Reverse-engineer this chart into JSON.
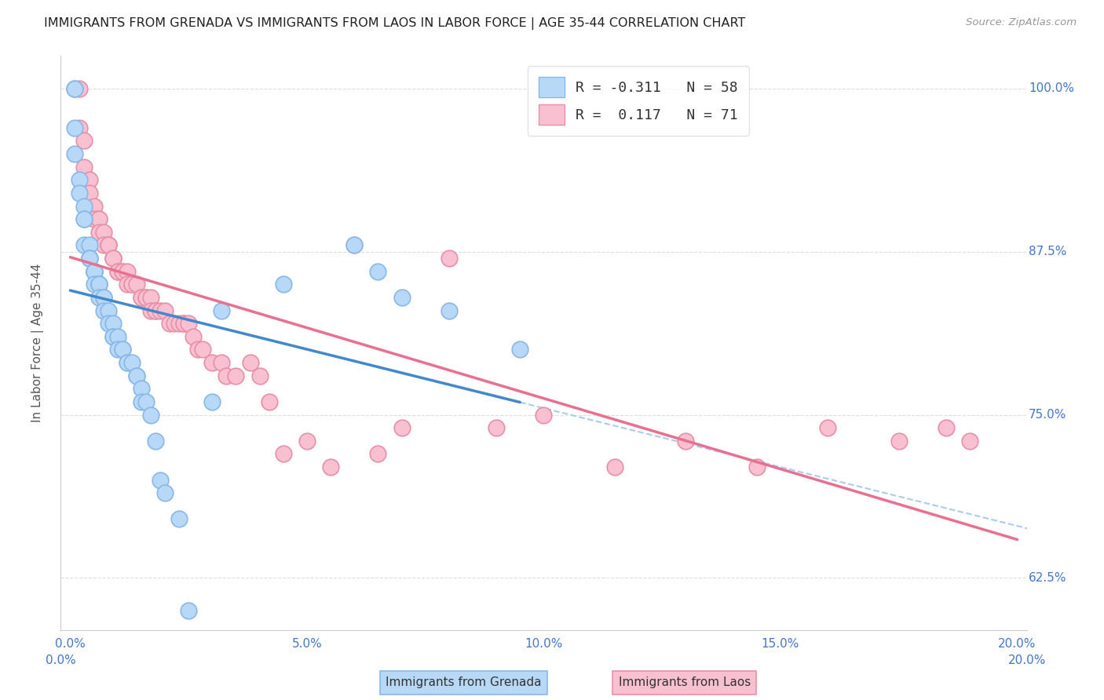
{
  "title": "IMMIGRANTS FROM GRENADA VS IMMIGRANTS FROM LAOS IN LABOR FORCE | AGE 35-44 CORRELATION CHART",
  "source": "Source: ZipAtlas.com",
  "ylabel": "In Labor Force | Age 35-44",
  "ytick_labels": [
    "62.5%",
    "75.0%",
    "87.5%",
    "100.0%"
  ],
  "ytick_values": [
    0.625,
    0.75,
    0.875,
    1.0
  ],
  "xlim": [
    -0.002,
    0.202
  ],
  "ylim": [
    0.585,
    1.025
  ],
  "grenada_color": "#b8d8f8",
  "grenada_edge_color": "#88b8e8",
  "laos_color": "#f8c0d0",
  "laos_edge_color": "#e890a8",
  "grenada_line_color": "#4488cc",
  "laos_line_color": "#e87090",
  "diag_line_color": "#aaccee",
  "xtick_positions": [
    0.0,
    0.05,
    0.1,
    0.15,
    0.2
  ],
  "xtick_labels": [
    "0.0%",
    "5.0%",
    "10.0%",
    "15.0%",
    "20.0%"
  ],
  "legend_grenada_label": "R = -0.311   N = 58",
  "legend_laos_label": "R =  0.117   N = 71",
  "bottom_label_grenada": "Immigrants from Grenada",
  "bottom_label_laos": "Immigrants from Laos",
  "grenada_x": [
    0.001,
    0.001,
    0.001,
    0.001,
    0.002,
    0.002,
    0.003,
    0.003,
    0.003,
    0.003,
    0.004,
    0.004,
    0.004,
    0.004,
    0.005,
    0.005,
    0.005,
    0.005,
    0.005,
    0.005,
    0.006,
    0.006,
    0.006,
    0.006,
    0.007,
    0.007,
    0.007,
    0.008,
    0.008,
    0.009,
    0.009,
    0.009,
    0.01,
    0.01,
    0.011,
    0.011,
    0.012,
    0.012,
    0.013,
    0.014,
    0.014,
    0.015,
    0.015,
    0.016,
    0.017,
    0.018,
    0.019,
    0.02,
    0.023,
    0.025,
    0.03,
    0.032,
    0.045,
    0.06,
    0.065,
    0.07,
    0.08,
    0.095
  ],
  "grenada_y": [
    1.0,
    1.0,
    0.97,
    0.95,
    0.93,
    0.92,
    0.91,
    0.9,
    0.9,
    0.88,
    0.88,
    0.87,
    0.87,
    0.87,
    0.86,
    0.86,
    0.86,
    0.86,
    0.86,
    0.85,
    0.85,
    0.85,
    0.85,
    0.84,
    0.84,
    0.84,
    0.83,
    0.83,
    0.82,
    0.82,
    0.81,
    0.81,
    0.81,
    0.8,
    0.8,
    0.8,
    0.79,
    0.79,
    0.79,
    0.78,
    0.78,
    0.77,
    0.76,
    0.76,
    0.75,
    0.73,
    0.7,
    0.69,
    0.67,
    0.6,
    0.76,
    0.83,
    0.85,
    0.88,
    0.86,
    0.84,
    0.83,
    0.8
  ],
  "laos_x": [
    0.001,
    0.002,
    0.002,
    0.003,
    0.003,
    0.004,
    0.004,
    0.005,
    0.005,
    0.006,
    0.006,
    0.006,
    0.007,
    0.007,
    0.008,
    0.008,
    0.008,
    0.009,
    0.009,
    0.009,
    0.01,
    0.01,
    0.011,
    0.011,
    0.012,
    0.012,
    0.013,
    0.013,
    0.014,
    0.015,
    0.015,
    0.016,
    0.016,
    0.017,
    0.017,
    0.018,
    0.018,
    0.019,
    0.02,
    0.021,
    0.022,
    0.023,
    0.024,
    0.024,
    0.025,
    0.026,
    0.027,
    0.028,
    0.03,
    0.032,
    0.033,
    0.035,
    0.038,
    0.04,
    0.042,
    0.045,
    0.05,
    0.055,
    0.06,
    0.065,
    0.07,
    0.08,
    0.09,
    0.1,
    0.115,
    0.13,
    0.145,
    0.16,
    0.175,
    0.185,
    0.19
  ],
  "laos_y": [
    1.0,
    1.0,
    0.97,
    0.96,
    0.94,
    0.93,
    0.92,
    0.91,
    0.9,
    0.9,
    0.9,
    0.89,
    0.89,
    0.88,
    0.88,
    0.88,
    0.88,
    0.87,
    0.87,
    0.87,
    0.86,
    0.86,
    0.86,
    0.86,
    0.86,
    0.85,
    0.85,
    0.85,
    0.85,
    0.84,
    0.84,
    0.84,
    0.84,
    0.84,
    0.83,
    0.83,
    0.83,
    0.83,
    0.83,
    0.82,
    0.82,
    0.82,
    0.82,
    0.82,
    0.82,
    0.81,
    0.8,
    0.8,
    0.79,
    0.79,
    0.78,
    0.78,
    0.79,
    0.78,
    0.76,
    0.72,
    0.73,
    0.71,
    0.88,
    0.72,
    0.74,
    0.87,
    0.74,
    0.75,
    0.71,
    0.73,
    0.71,
    0.74,
    0.73,
    0.74,
    0.73
  ]
}
